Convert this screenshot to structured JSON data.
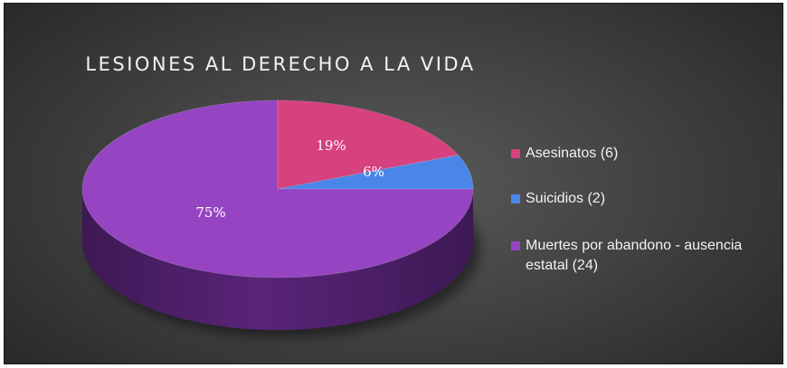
{
  "chart_data": {
    "type": "pie",
    "title": "LESIONES AL DERECHO A LA VIDA",
    "legend_position": "right",
    "slices": [
      {
        "name": "Asesinatos (6)",
        "value": 6,
        "percent_label": "19%",
        "color": "#d6417e"
      },
      {
        "name": "Suicidios (2)",
        "value": 2,
        "percent_label": "6%",
        "color": "#4a86e8"
      },
      {
        "name": "Muertes por abandono - ausencia estatal  (24)",
        "value": 24,
        "percent_label": "75%",
        "color": "#9645c2"
      }
    ]
  },
  "colors": {
    "background": "#3c3c3c",
    "title_text": "#f2f2f2",
    "legend_text": "#f2f2f2",
    "side_asesinatos": "#8a2350",
    "side_suicidios": "#2a558f",
    "side_muertes": "#5e2680"
  }
}
